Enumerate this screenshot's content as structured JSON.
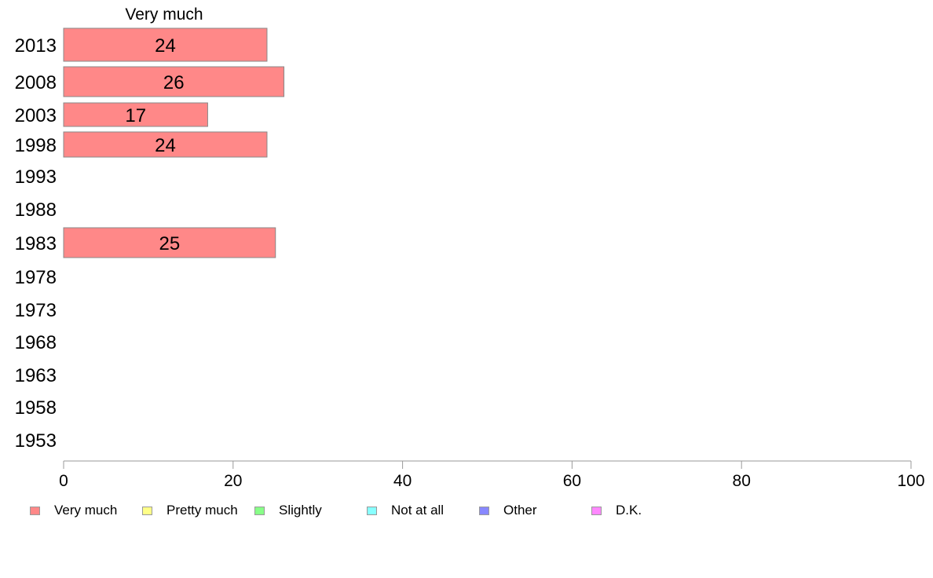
{
  "chart_data": {
    "type": "bar",
    "orientation": "horizontal",
    "title": "Very much",
    "categories": [
      "2013",
      "2008",
      "2003",
      "1998",
      "1993",
      "1988",
      "1983",
      "1978",
      "1973",
      "1968",
      "1963",
      "1958",
      "1953"
    ],
    "series": [
      {
        "name": "Very much",
        "color": "#ff8888",
        "values": [
          24,
          26,
          17,
          24,
          null,
          null,
          25,
          null,
          null,
          null,
          null,
          null,
          null
        ]
      }
    ],
    "data_labels": [
      "24",
      "26",
      "17",
      "24",
      "",
      "",
      "25",
      "",
      "",
      "",
      "",
      "",
      ""
    ],
    "xlim": [
      0,
      100
    ],
    "xticks": [
      "0",
      "20",
      "40",
      "60",
      "80",
      "100"
    ],
    "grid": false,
    "legend_position": "bottom-left"
  },
  "legend": [
    {
      "label": "Very much",
      "color": "#ff8888"
    },
    {
      "label": "Pretty much",
      "color": "#ffff88"
    },
    {
      "label": "Slightly",
      "color": "#88ff88"
    },
    {
      "label": "Not at all",
      "color": "#88ffff"
    },
    {
      "label": "Other",
      "color": "#8888ff"
    },
    {
      "label": "D.K.",
      "color": "#ff88ff"
    }
  ]
}
